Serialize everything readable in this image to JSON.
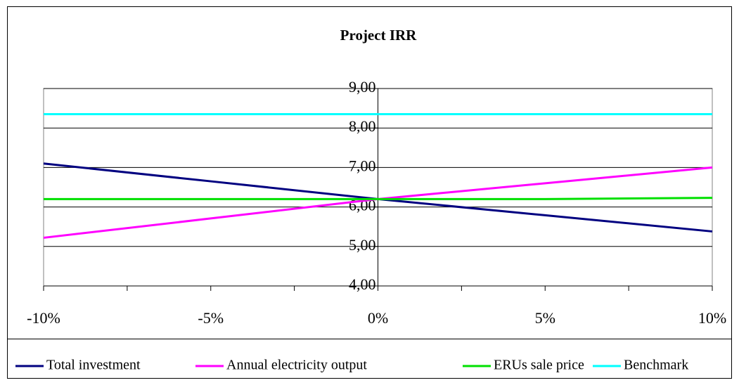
{
  "chart_data": {
    "type": "line",
    "title": "Project IRR",
    "x": [
      -10,
      -5,
      0,
      5,
      10
    ],
    "xlim": [
      -10,
      10
    ],
    "xticks": [
      {
        "value": -10,
        "label": "-10%"
      },
      {
        "value": -5,
        "label": "-5%"
      },
      {
        "value": 0,
        "label": "0%"
      },
      {
        "value": 5,
        "label": "5%"
      },
      {
        "value": 10,
        "label": "10%"
      }
    ],
    "ylim": [
      4,
      9
    ],
    "yticks": [
      {
        "value": 4,
        "label": "4,00"
      },
      {
        "value": 5,
        "label": "5,00"
      },
      {
        "value": 6,
        "label": "6,00"
      },
      {
        "value": 7,
        "label": "7,00"
      },
      {
        "value": 8,
        "label": "8,00"
      },
      {
        "value": 9,
        "label": "9,00"
      }
    ],
    "grid": true,
    "legend": "bottom",
    "series": [
      {
        "name": "Total investment",
        "color": "#000080",
        "values": [
          7.1,
          6.65,
          6.2,
          5.79,
          5.38
        ]
      },
      {
        "name": "Annual electricity output",
        "color": "#ff00ff",
        "values": [
          5.22,
          5.71,
          6.2,
          6.6,
          7.0
        ]
      },
      {
        "name": "ERUs sale price",
        "color": "#00e000",
        "values": [
          6.2,
          6.2,
          6.2,
          6.2,
          6.23
        ]
      },
      {
        "name": "Benchmark",
        "color": "#00ffff",
        "values": [
          8.35,
          8.35,
          8.35,
          8.35,
          8.35
        ]
      }
    ]
  }
}
